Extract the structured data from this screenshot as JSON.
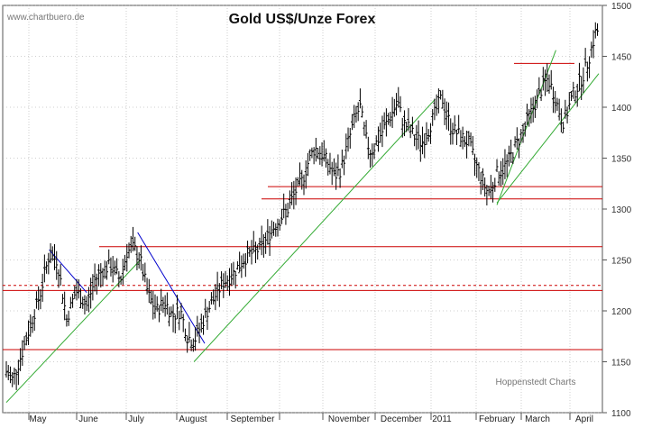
{
  "source": "www.chartbuero.de",
  "credit": "Hoppenstedt Charts",
  "chart_data": {
    "type": "ohlc-bar",
    "title": "Gold US$/Unze Forex",
    "ylim": [
      1100,
      1500
    ],
    "y_ticks": [
      1100,
      1150,
      1200,
      1250,
      1300,
      1350,
      1400,
      1450,
      1500
    ],
    "x_labels": [
      "May",
      "June",
      "July",
      "August",
      "September",
      "November",
      "December",
      "2011",
      "February",
      "March",
      "April"
    ],
    "grid": "vertical monthly gridlines and dotted horizontal gridlines",
    "colors": {
      "bars": "#000000",
      "horizontal_levels": "#cc0000",
      "uptrend_lines": "#33aa33",
      "downtrend_lines": "#0000cc",
      "grid": "#888888"
    },
    "horizontal_levels": [
      1162,
      1220,
      1225,
      1263,
      1310,
      1322,
      1443
    ],
    "dashed_levels": [
      1225
    ],
    "price_points": [
      {
        "d": 0,
        "v": 1140
      },
      {
        "d": 5,
        "v": 1132
      },
      {
        "d": 12,
        "v": 1160
      },
      {
        "d": 20,
        "v": 1195
      },
      {
        "d": 25,
        "v": 1215
      },
      {
        "d": 32,
        "v": 1255
      },
      {
        "d": 38,
        "v": 1250
      },
      {
        "d": 45,
        "v": 1192
      },
      {
        "d": 52,
        "v": 1220
      },
      {
        "d": 60,
        "v": 1205
      },
      {
        "d": 66,
        "v": 1230
      },
      {
        "d": 72,
        "v": 1240
      },
      {
        "d": 78,
        "v": 1245
      },
      {
        "d": 85,
        "v": 1230
      },
      {
        "d": 90,
        "v": 1258
      },
      {
        "d": 95,
        "v": 1262
      },
      {
        "d": 100,
        "v": 1250
      },
      {
        "d": 106,
        "v": 1215
      },
      {
        "d": 112,
        "v": 1200
      },
      {
        "d": 118,
        "v": 1210
      },
      {
        "d": 124,
        "v": 1195
      },
      {
        "d": 130,
        "v": 1200
      },
      {
        "d": 135,
        "v": 1175
      },
      {
        "d": 140,
        "v": 1170
      },
      {
        "d": 145,
        "v": 1185
      },
      {
        "d": 150,
        "v": 1200
      },
      {
        "d": 156,
        "v": 1215
      },
      {
        "d": 162,
        "v": 1228
      },
      {
        "d": 168,
        "v": 1235
      },
      {
        "d": 174,
        "v": 1245
      },
      {
        "d": 180,
        "v": 1255
      },
      {
        "d": 186,
        "v": 1258
      },
      {
        "d": 192,
        "v": 1265
      },
      {
        "d": 198,
        "v": 1280
      },
      {
        "d": 204,
        "v": 1290
      },
      {
        "d": 210,
        "v": 1300
      },
      {
        "d": 216,
        "v": 1318
      },
      {
        "d": 220,
        "v": 1325
      },
      {
        "d": 225,
        "v": 1345
      },
      {
        "d": 230,
        "v": 1360
      },
      {
        "d": 235,
        "v": 1355
      },
      {
        "d": 240,
        "v": 1345
      },
      {
        "d": 245,
        "v": 1332
      },
      {
        "d": 250,
        "v": 1340
      },
      {
        "d": 255,
        "v": 1365
      },
      {
        "d": 260,
        "v": 1390
      },
      {
        "d": 264,
        "v": 1400
      },
      {
        "d": 268,
        "v": 1370
      },
      {
        "d": 272,
        "v": 1355
      },
      {
        "d": 276,
        "v": 1365
      },
      {
        "d": 280,
        "v": 1375
      },
      {
        "d": 284,
        "v": 1385
      },
      {
        "d": 288,
        "v": 1395
      },
      {
        "d": 292,
        "v": 1405
      },
      {
        "d": 296,
        "v": 1385
      },
      {
        "d": 300,
        "v": 1380
      },
      {
        "d": 305,
        "v": 1370
      },
      {
        "d": 310,
        "v": 1365
      },
      {
        "d": 315,
        "v": 1378
      },
      {
        "d": 320,
        "v": 1395
      },
      {
        "d": 325,
        "v": 1410
      },
      {
        "d": 328,
        "v": 1395
      },
      {
        "d": 332,
        "v": 1380
      },
      {
        "d": 336,
        "v": 1375
      },
      {
        "d": 340,
        "v": 1370
      },
      {
        "d": 345,
        "v": 1365
      },
      {
        "d": 350,
        "v": 1345
      },
      {
        "d": 355,
        "v": 1330
      },
      {
        "d": 358,
        "v": 1318
      },
      {
        "d": 362,
        "v": 1320
      },
      {
        "d": 366,
        "v": 1335
      },
      {
        "d": 370,
        "v": 1338
      },
      {
        "d": 375,
        "v": 1348
      },
      {
        "d": 380,
        "v": 1362
      },
      {
        "d": 385,
        "v": 1375
      },
      {
        "d": 390,
        "v": 1390
      },
      {
        "d": 395,
        "v": 1405
      },
      {
        "d": 400,
        "v": 1420
      },
      {
        "d": 404,
        "v": 1428
      },
      {
        "d": 408,
        "v": 1415
      },
      {
        "d": 412,
        "v": 1398
      },
      {
        "d": 415,
        "v": 1385
      },
      {
        "d": 418,
        "v": 1393
      },
      {
        "d": 422,
        "v": 1410
      },
      {
        "d": 426,
        "v": 1420
      },
      {
        "d": 430,
        "v": 1430
      },
      {
        "d": 434,
        "v": 1445
      },
      {
        "d": 437,
        "v": 1460
      },
      {
        "d": 440,
        "v": 1475
      }
    ],
    "trendlines": [
      {
        "color": "uptrend",
        "from": {
          "d": 0,
          "v": 1110
        },
        "to": {
          "d": 100,
          "v": 1250
        }
      },
      {
        "color": "downtrend",
        "from": {
          "d": 32,
          "v": 1260
        },
        "to": {
          "d": 60,
          "v": 1218
        }
      },
      {
        "color": "downtrend",
        "from": {
          "d": 98,
          "v": 1277
        },
        "to": {
          "d": 148,
          "v": 1168
        }
      },
      {
        "color": "uptrend",
        "from": {
          "d": 140,
          "v": 1150
        },
        "to": {
          "d": 320,
          "v": 1408
        }
      },
      {
        "color": "uptrend",
        "from": {
          "d": 366,
          "v": 1304
        },
        "to": {
          "d": 410,
          "v": 1456
        }
      },
      {
        "color": "uptrend",
        "from": {
          "d": 366,
          "v": 1306
        },
        "to": {
          "d": 442,
          "v": 1433
        }
      }
    ]
  }
}
